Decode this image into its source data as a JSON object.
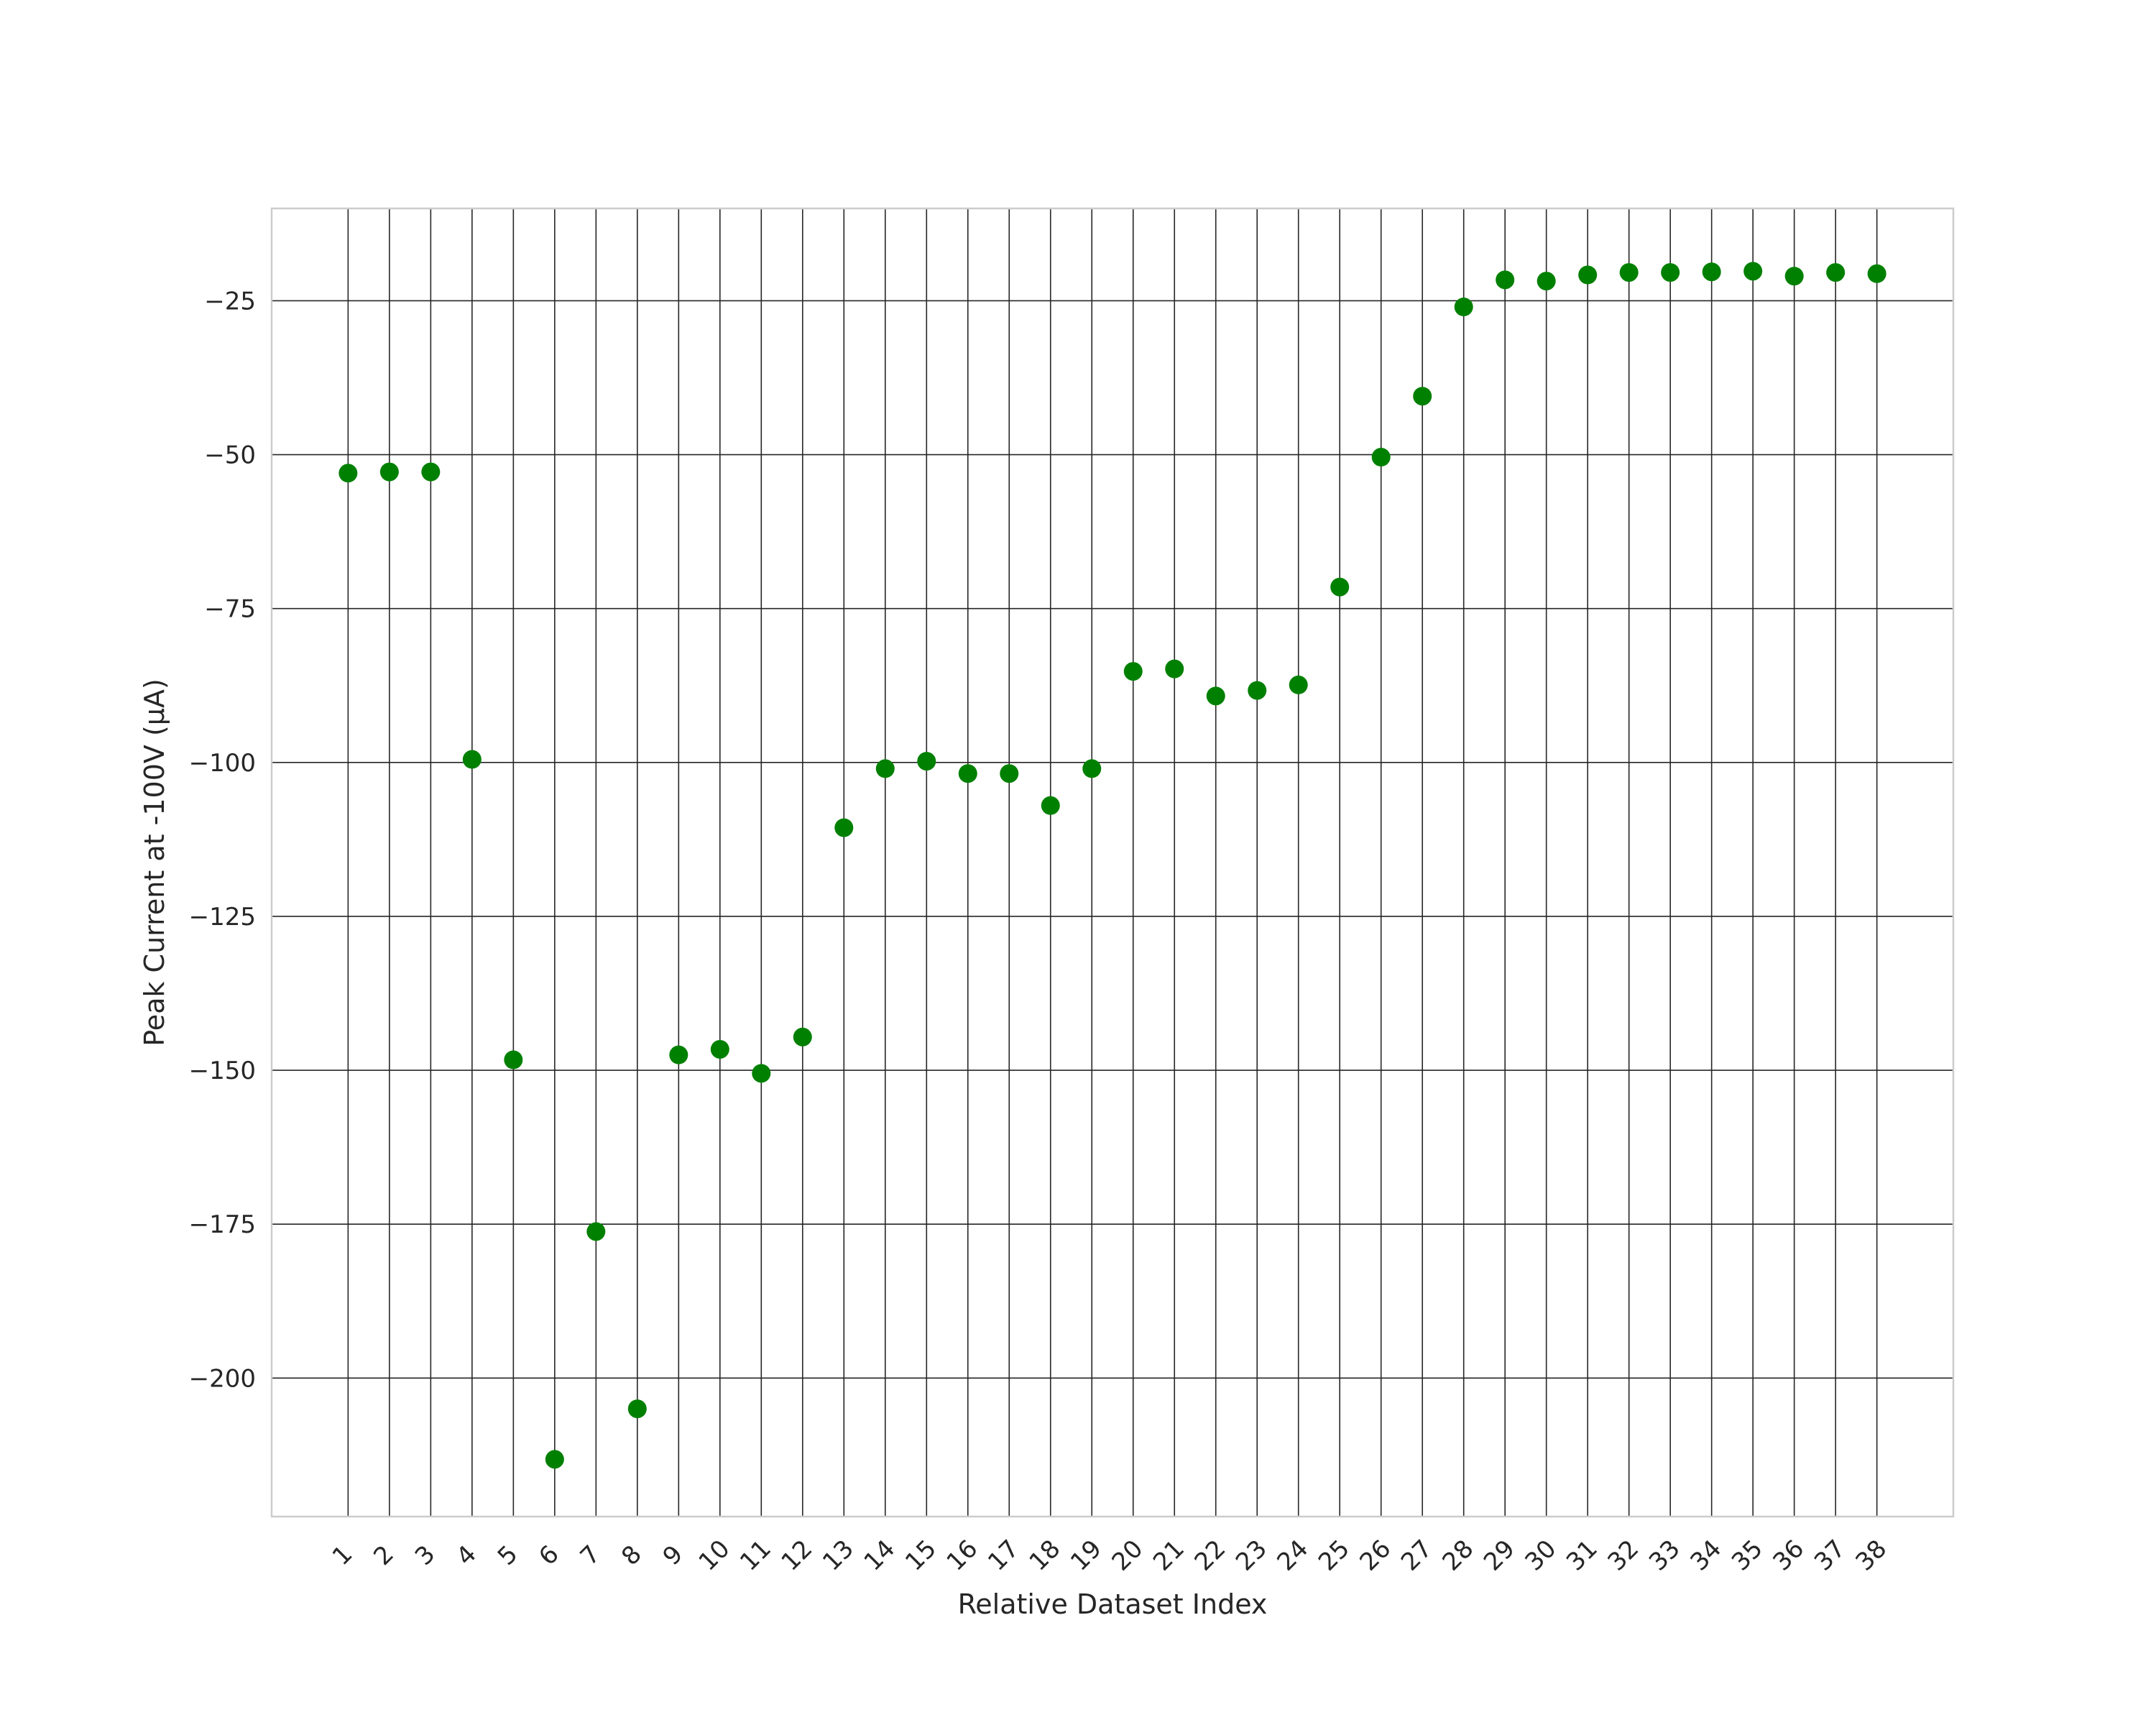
{
  "chart_data": {
    "type": "scatter",
    "title": "",
    "xlabel": "Relative Dataset Index",
    "ylabel": "Peak Current at -100V (μA)",
    "x": [
      1,
      2,
      3,
      4,
      5,
      6,
      7,
      8,
      9,
      10,
      11,
      12,
      13,
      14,
      15,
      16,
      17,
      18,
      19,
      20,
      21,
      22,
      23,
      24,
      25,
      26,
      27,
      28,
      29,
      30,
      31,
      32,
      33,
      34,
      35,
      36,
      37,
      38
    ],
    "y": [
      -53,
      -52.8,
      -52.8,
      -99.5,
      -148.3,
      -213.2,
      -176.2,
      -205,
      -147.5,
      -146.6,
      -150.5,
      -144.6,
      -110.6,
      -101,
      -99.8,
      -101.8,
      -101.8,
      -107,
      -101,
      -85.2,
      -84.8,
      -89.2,
      -88.3,
      -87.4,
      -71.5,
      -50.4,
      -40.5,
      -26,
      -21.6,
      -21.8,
      -20.8,
      -20.4,
      -20.4,
      -20.3,
      -20.2,
      -21,
      -20.4,
      -20.6
    ],
    "xticks": [
      "1",
      "2",
      "3",
      "4",
      "5",
      "6",
      "7",
      "8",
      "9",
      "10",
      "11",
      "12",
      "13",
      "14",
      "15",
      "16",
      "17",
      "18",
      "19",
      "20",
      "21",
      "22",
      "23",
      "24",
      "25",
      "26",
      "27",
      "28",
      "29",
      "30",
      "31",
      "32",
      "33",
      "34",
      "35",
      "36",
      "37",
      "38"
    ],
    "yticks": [
      -25,
      -50,
      -75,
      -100,
      -125,
      -150,
      -175,
      -200
    ],
    "ytick_labels": [
      "−25",
      "−50",
      "−75",
      "−100",
      "−125",
      "−150",
      "−175",
      "−200"
    ],
    "xlim": [
      -0.85,
      39.85
    ],
    "ylim": [
      -222.5,
      -10
    ],
    "grid": true,
    "marker_color": "#008000",
    "grid_color": "#262626"
  }
}
